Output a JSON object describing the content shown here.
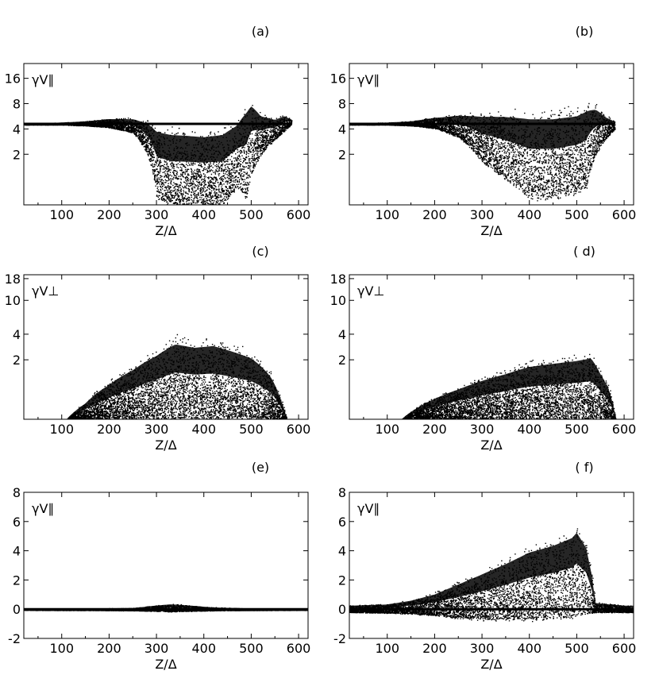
{
  "chart_data": [
    {
      "type": "scatter",
      "panel_label": "(a)",
      "xlabel": "Z/Δ",
      "ylabel": "γV∥",
      "xlim": [
        20,
        620
      ],
      "ylim": [
        0.5,
        24
      ],
      "yscale": "log",
      "x_ticks": [
        100,
        200,
        300,
        400,
        500,
        600
      ],
      "y_ticks": [
        2,
        4,
        8,
        16
      ],
      "envelope_x": [
        20,
        100,
        150,
        200,
        250,
        280,
        300,
        330,
        360,
        400,
        440,
        470,
        490,
        500,
        520,
        550,
        570,
        585
      ],
      "envelope_upper": [
        4.7,
        4.8,
        5.0,
        5.4,
        5.5,
        5.2,
        4.7,
        4.4,
        4.3,
        4.1,
        4.4,
        5.5,
        8.5,
        9.5,
        6.5,
        5.5,
        6.0,
        5.2
      ],
      "envelope_lower": [
        4.5,
        4.5,
        4.4,
        4.2,
        3.6,
        2.0,
        0.6,
        0.5,
        0.5,
        0.5,
        0.5,
        0.8,
        0.6,
        1.2,
        2.0,
        3.0,
        3.8,
        4.6
      ]
    },
    {
      "type": "scatter",
      "panel_label": "(b)",
      "xlabel": "Z/Δ",
      "ylabel": "γV∥",
      "xlim": [
        20,
        620
      ],
      "ylim": [
        0.5,
        24
      ],
      "yscale": "log",
      "x_ticks": [
        100,
        200,
        300,
        400,
        500,
        600
      ],
      "y_ticks": [
        2,
        4,
        8,
        16
      ],
      "envelope_x": [
        20,
        100,
        150,
        200,
        250,
        300,
        350,
        400,
        450,
        500,
        520,
        540,
        560,
        580
      ],
      "envelope_upper": [
        4.7,
        4.8,
        5.0,
        5.6,
        6.2,
        6.6,
        7.0,
        7.0,
        7.0,
        7.5,
        8.5,
        8.0,
        6.0,
        5.0
      ],
      "envelope_lower": [
        4.5,
        4.5,
        4.4,
        4.1,
        3.2,
        1.6,
        1.0,
        0.6,
        0.6,
        0.7,
        0.8,
        2.0,
        3.0,
        4.0
      ]
    },
    {
      "type": "scatter",
      "panel_label": "(c)",
      "xlabel": "Z/Δ",
      "ylabel": "γV⊥",
      "xlim": [
        20,
        620
      ],
      "ylim": [
        0.4,
        20
      ],
      "yscale": "log",
      "x_ticks": [
        100,
        200,
        300,
        400,
        500,
        600
      ],
      "y_ticks": [
        2,
        4,
        10,
        18
      ],
      "envelope_x": [
        110,
        150,
        200,
        250,
        300,
        340,
        380,
        420,
        460,
        500,
        540,
        560,
        575
      ],
      "envelope_upper": [
        0.4,
        0.65,
        1.15,
        1.8,
        2.8,
        4.0,
        3.6,
        3.8,
        3.2,
        2.6,
        1.5,
        0.8,
        0.4
      ],
      "envelope_lower": [
        0.4,
        0.4,
        0.4,
        0.4,
        0.4,
        0.4,
        0.4,
        0.4,
        0.4,
        0.4,
        0.4,
        0.4,
        0.4
      ]
    },
    {
      "type": "scatter",
      "panel_label": "( d)",
      "xlabel": "Z/Δ",
      "ylabel": "γV⊥",
      "xlim": [
        20,
        620
      ],
      "ylim": [
        0.4,
        20
      ],
      "yscale": "log",
      "x_ticks": [
        100,
        200,
        300,
        400,
        500,
        600
      ],
      "y_ticks": [
        2,
        4,
        10,
        18
      ],
      "envelope_x": [
        130,
        200,
        250,
        300,
        350,
        400,
        450,
        500,
        530,
        550,
        570,
        582
      ],
      "envelope_upper": [
        0.4,
        0.75,
        1.0,
        1.3,
        1.6,
        2.0,
        2.2,
        2.4,
        2.6,
        1.6,
        0.9,
        0.4
      ],
      "envelope_lower": [
        0.4,
        0.4,
        0.4,
        0.4,
        0.4,
        0.4,
        0.4,
        0.4,
        0.4,
        0.4,
        0.4,
        0.4
      ]
    },
    {
      "type": "scatter",
      "panel_label": "(e)",
      "xlabel": "Z/Δ",
      "ylabel": "γV∥",
      "xlim": [
        20,
        620
      ],
      "ylim": [
        -2,
        8
      ],
      "yscale": "linear",
      "x_ticks": [
        100,
        200,
        300,
        400,
        500,
        600
      ],
      "y_ticks": [
        -2,
        0,
        2,
        4,
        6,
        8
      ],
      "envelope_x": [
        20,
        150,
        250,
        300,
        330,
        370,
        420,
        500,
        620
      ],
      "envelope_upper": [
        0.05,
        0.06,
        0.1,
        0.3,
        0.4,
        0.3,
        0.15,
        0.06,
        0.05
      ],
      "envelope_lower": [
        -0.05,
        -0.06,
        -0.08,
        -0.12,
        -0.15,
        -0.12,
        -0.08,
        -0.06,
        -0.05
      ]
    },
    {
      "type": "scatter",
      "panel_label": "( f)",
      "xlabel": "Z/Δ",
      "ylabel": "γV∥",
      "xlim": [
        20,
        620
      ],
      "ylim": [
        -2,
        8
      ],
      "yscale": "linear",
      "x_ticks": [
        100,
        200,
        300,
        400,
        500,
        600
      ],
      "y_ticks": [
        -2,
        0,
        2,
        4,
        6,
        8
      ],
      "envelope_x": [
        20,
        100,
        150,
        200,
        250,
        300,
        350,
        400,
        450,
        490,
        500,
        520,
        530,
        540,
        600,
        620
      ],
      "envelope_upper": [
        0.3,
        0.4,
        0.7,
        1.2,
        2.0,
        2.8,
        3.6,
        4.5,
        5.0,
        5.6,
        6.0,
        4.8,
        3.0,
        0.5,
        0.3,
        0.3
      ],
      "envelope_lower": [
        -0.2,
        -0.25,
        -0.3,
        -0.4,
        -0.6,
        -0.7,
        -0.7,
        -0.7,
        -0.6,
        -0.5,
        -0.4,
        -0.3,
        -0.3,
        -0.2,
        -0.2,
        -0.2
      ]
    }
  ]
}
